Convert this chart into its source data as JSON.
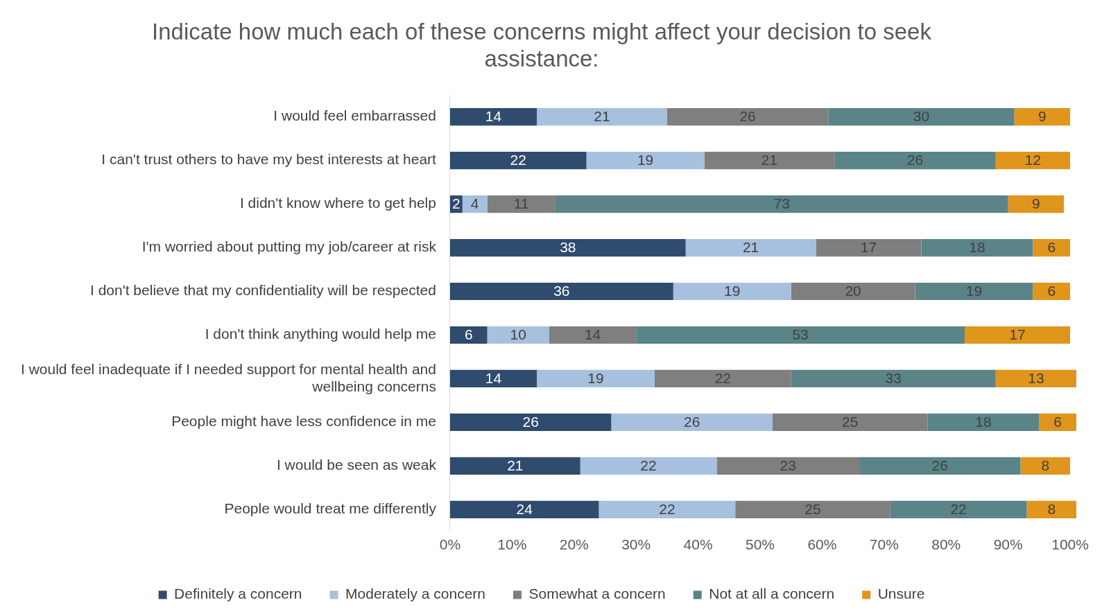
{
  "chart_data": {
    "type": "bar",
    "orientation": "horizontal",
    "stacked": true,
    "title": "Indicate how much each of these concerns might affect your decision to seek assistance:",
    "categories": [
      "I would feel embarrassed",
      "I can't trust others to have my best interests at heart",
      "I didn't know where to get help",
      "I'm worried about putting my job/career at risk",
      "I don't believe that my confidentiality will be respected",
      "I don't think anything would help me",
      "I would feel inadequate if I needed support for mental health and wellbeing concerns",
      "People might have less confidence in me",
      "I would be seen as weak",
      "People would treat me differently"
    ],
    "series": [
      {
        "name": "Definitely a concern",
        "color": "#2f4b6e",
        "values": [
          14,
          22,
          2,
          38,
          36,
          6,
          14,
          26,
          21,
          24
        ]
      },
      {
        "name": "Moderately a concern",
        "color": "#a7c0de",
        "values": [
          21,
          19,
          4,
          21,
          19,
          10,
          19,
          26,
          22,
          22
        ]
      },
      {
        "name": "Somewhat a concern",
        "color": "#7f7f7f",
        "values": [
          26,
          21,
          11,
          17,
          20,
          14,
          22,
          25,
          23,
          25
        ]
      },
      {
        "name": "Not at all a concern",
        "color": "#5a8487",
        "values": [
          30,
          26,
          73,
          18,
          19,
          53,
          33,
          18,
          26,
          22
        ]
      },
      {
        "name": "Unsure",
        "color": "#e0951c",
        "values": [
          9,
          12,
          9,
          6,
          6,
          17,
          13,
          6,
          8,
          8
        ]
      }
    ],
    "xlim": [
      0,
      101
    ],
    "xticks": [
      {
        "value": 0,
        "label": "0%"
      },
      {
        "value": 10,
        "label": "10%"
      },
      {
        "value": 20,
        "label": "20%"
      },
      {
        "value": 30,
        "label": "30%"
      },
      {
        "value": 40,
        "label": "40%"
      },
      {
        "value": 50,
        "label": "50%"
      },
      {
        "value": 60,
        "label": "60%"
      },
      {
        "value": 70,
        "label": "70%"
      },
      {
        "value": 80,
        "label": "80%"
      },
      {
        "value": 90,
        "label": "90%"
      },
      {
        "value": 100,
        "label": "100%"
      }
    ],
    "data_labels": true,
    "grid": false,
    "legend": "bottom"
  }
}
